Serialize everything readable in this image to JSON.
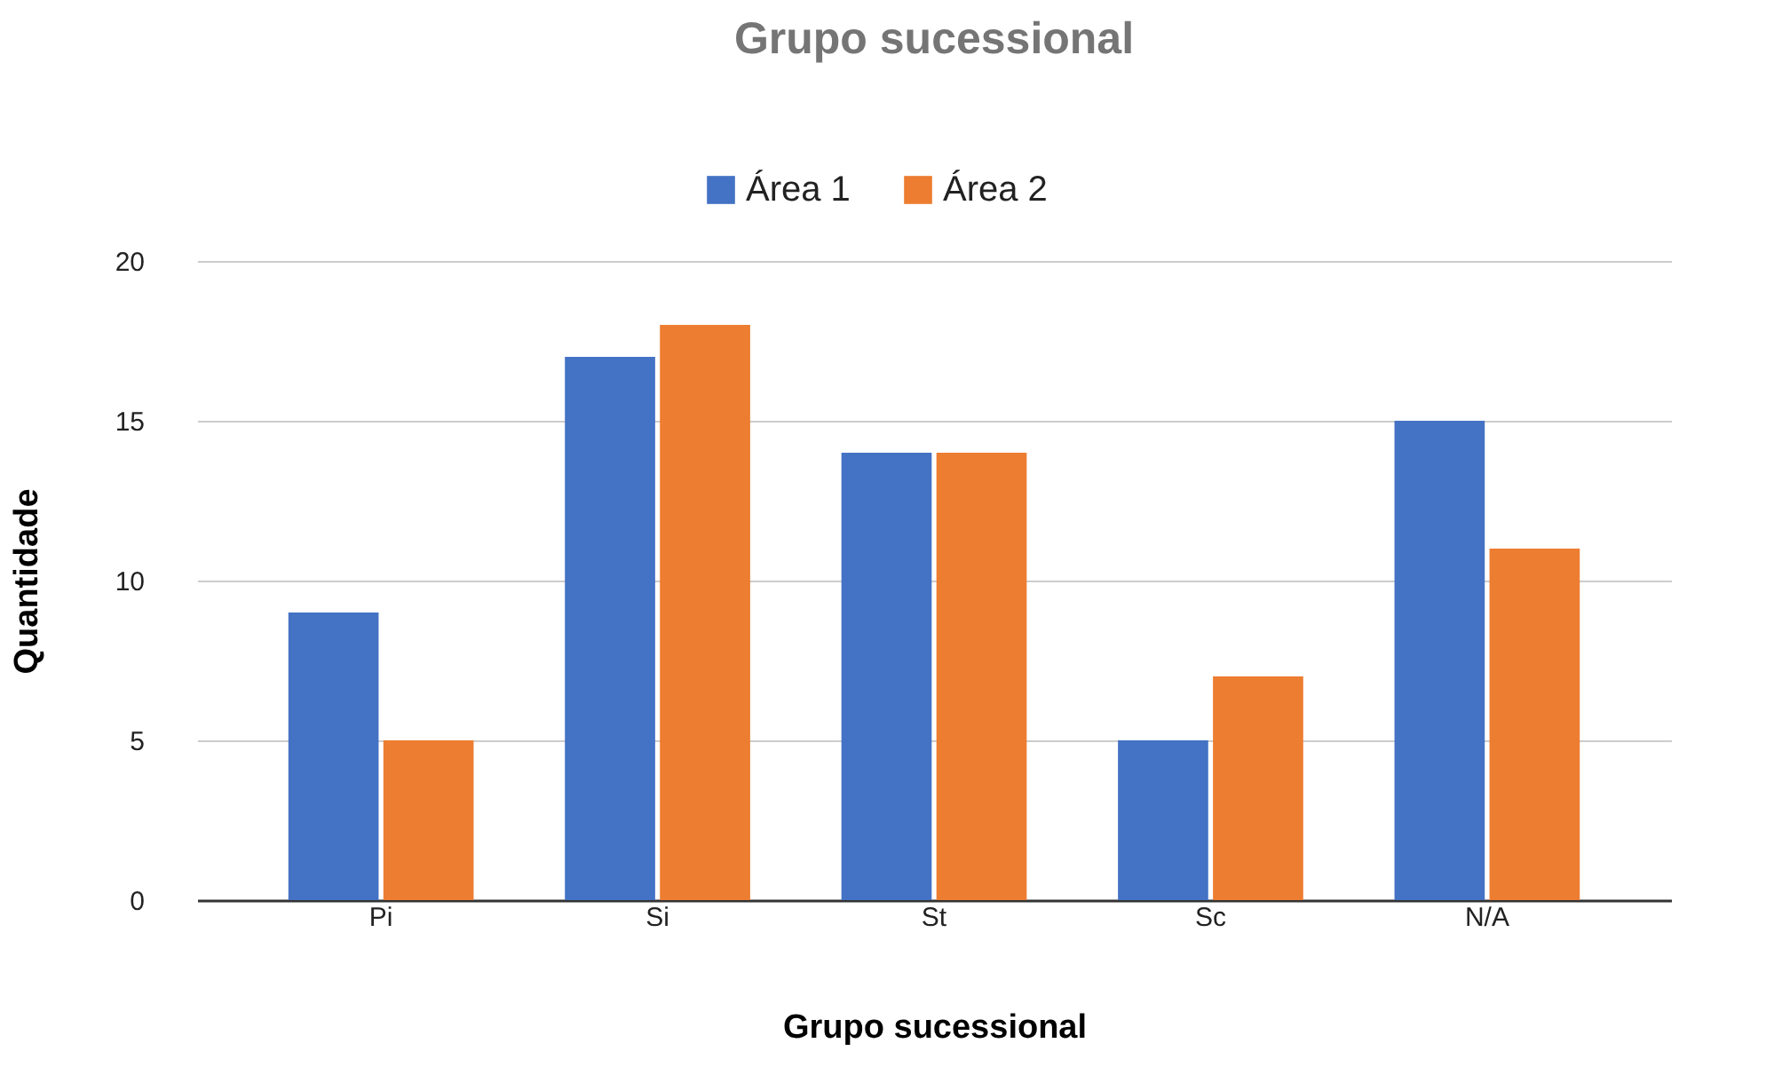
{
  "chart_data": {
    "type": "bar",
    "title": "Grupo sucessional",
    "xlabel": "Grupo sucessional",
    "ylabel": "Quantidade",
    "categories": [
      "Pi",
      "Si",
      "St",
      "Sc",
      "N/A"
    ],
    "series": [
      {
        "name": "Área 1",
        "color": "#4472c4",
        "values": [
          9,
          17,
          14,
          5,
          15
        ]
      },
      {
        "name": "Área 2",
        "color": "#ed7d31",
        "values": [
          5,
          18,
          14,
          7,
          11
        ]
      }
    ],
    "ylim": [
      0,
      20
    ],
    "yticks": [
      0,
      5,
      10,
      15,
      20
    ],
    "grid": "y",
    "legend": "top"
  }
}
